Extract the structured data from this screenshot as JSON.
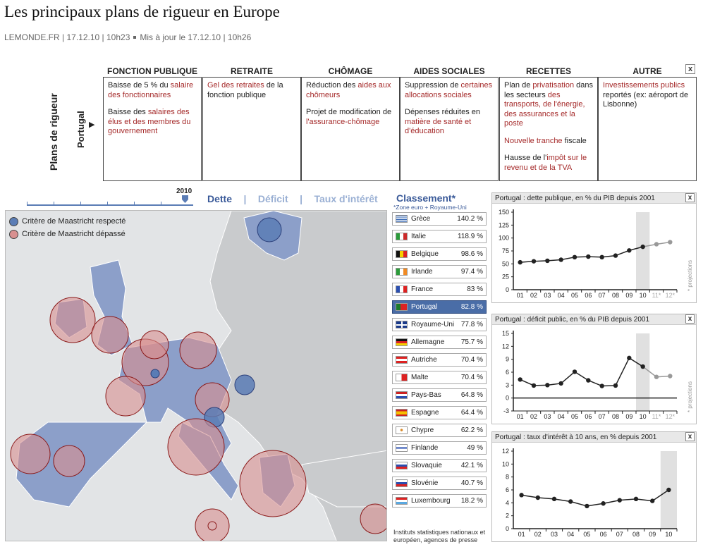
{
  "header": {
    "title": "Les principaux plans de rigueur en Europe",
    "source": "LEMONDE.FR",
    "date": "17.12.10",
    "time": "10h23",
    "updated": "Mis à jour le 17.12.10 | 10h26"
  },
  "plans": {
    "side_label": "Plans de rigueur",
    "country": "Portugal",
    "close_label": "x",
    "columns": [
      {
        "title": "FONCTION PUBLIQUE",
        "p1a": "Baisse de 5 % du ",
        "p1b": "salaire des fonctionnaires",
        "p2a": "Baisse des ",
        "p2b": "salaires des élus et des membres du gouvernement"
      },
      {
        "title": "RETRAITE",
        "p1a": "",
        "p1b": "Gel des retraites",
        "p1c": " de la fonction publique"
      },
      {
        "title": "CHÔMAGE",
        "p1a": "Réduction des ",
        "p1b": "aides aux chômeurs",
        "p2a": "Projet de modification de ",
        "p2b": "l'assurance-chômage"
      },
      {
        "title": "AIDES SOCIALES",
        "p1a": "Suppression de ",
        "p1b": "certaines allocations sociales",
        "p2a": "Dépenses réduites en ",
        "p2b": "matière de santé et d'éducation"
      },
      {
        "title": "RECETTES",
        "p1a": "Plan de ",
        "p1b": "privatisation",
        "p1c": " dans les secteurs ",
        "p1d": "des transports, de l'énergie, des assurances et la poste",
        "p2b": "Nouvelle tranche",
        "p2c": " fiscale",
        "p3a": "Hausse de l'",
        "p3b": "impôt sur le revenu et de la TVA"
      },
      {
        "title": "AUTRE",
        "p1b": "Investissements publics",
        "p1c": " reportés (ex: aéroport de Lisbonne)"
      }
    ]
  },
  "timeline": {
    "year": "2010"
  },
  "tabs": {
    "dette": "Dette",
    "deficit": "Déficit",
    "taux": "Taux d'intérêt",
    "sep": "|"
  },
  "legend": {
    "ok": "Critère de Maastricht respecté",
    "ko": "Critère de Maastricht dépassé"
  },
  "ranking": {
    "title": "Classement*",
    "subtitle": "*Zone euro + Royaume-Uni",
    "rows": [
      {
        "name": "Grèce",
        "value": "140.2 %"
      },
      {
        "name": "Italie",
        "value": "118.9 %"
      },
      {
        "name": "Belgique",
        "value": "98.6 %"
      },
      {
        "name": "Irlande",
        "value": "97.4 %"
      },
      {
        "name": "France",
        "value": "83 %"
      },
      {
        "name": "Portugal",
        "value": "82.8 %"
      },
      {
        "name": "Royaume-Uni",
        "value": "77.8 %"
      },
      {
        "name": "Allemagne",
        "value": "75.7 %"
      },
      {
        "name": "Autriche",
        "value": "70.4 %"
      },
      {
        "name": "Malte",
        "value": "70.4 %"
      },
      {
        "name": "Pays-Bas",
        "value": "64.8 %"
      },
      {
        "name": "Espagne",
        "value": "64.4 %"
      },
      {
        "name": "Chypre",
        "value": "62.2 %"
      },
      {
        "name": "Finlande",
        "value": "49 %"
      },
      {
        "name": "Slovaquie",
        "value": "42.1 %"
      },
      {
        "name": "Slovénie",
        "value": "40.7 %"
      },
      {
        "name": "Luxembourg",
        "value": "18.2 %"
      }
    ],
    "sources": "Instituts statistiques nationaux et européen, agences de presse"
  },
  "colors": {
    "blue": "#5a7cb5",
    "red": "#a52a2a",
    "selected": "#4a6da7"
  },
  "chart_data": [
    {
      "type": "line",
      "title": "Portugal : dette publique, en % du PIB depuis 2001",
      "categories": [
        "01",
        "02",
        "03",
        "04",
        "05",
        "06",
        "07",
        "08",
        "09",
        "10",
        "11*",
        "12*"
      ],
      "values": [
        53,
        55,
        56,
        58,
        63,
        64,
        63,
        66,
        76,
        83,
        88,
        92
      ],
      "ylim": [
        0,
        150
      ],
      "yticks": [
        "0",
        "25",
        "50",
        "75",
        "100",
        "125",
        "150"
      ],
      "note": "* projections",
      "highlight": "10"
    },
    {
      "type": "line",
      "title": "Portugal : déficit public, en % du PIB depuis 2001",
      "categories": [
        "01",
        "02",
        "03",
        "04",
        "05",
        "06",
        "07",
        "08",
        "09",
        "10",
        "11*",
        "12*"
      ],
      "values": [
        4.3,
        2.9,
        3.0,
        3.4,
        6.1,
        4.1,
        2.8,
        2.9,
        9.3,
        7.3,
        4.9,
        5.1
      ],
      "ylim": [
        -3,
        15
      ],
      "yticks": [
        "-3",
        "0",
        "3",
        "6",
        "9",
        "12",
        "15"
      ],
      "note": "* projections",
      "highlight": "10"
    },
    {
      "type": "line",
      "title": "Portugal : taux d'intérêt à 10 ans, en % depuis 2001",
      "categories": [
        "01",
        "02",
        "03",
        "04",
        "05",
        "06",
        "07",
        "08",
        "09",
        "10"
      ],
      "values": [
        5.2,
        4.8,
        4.6,
        4.2,
        3.5,
        3.9,
        4.4,
        4.6,
        4.3,
        6.0
      ],
      "ylim": [
        0,
        12
      ],
      "yticks": [
        "0",
        "2",
        "4",
        "6",
        "8",
        "10",
        "12"
      ],
      "note": "",
      "highlight": "10"
    }
  ]
}
